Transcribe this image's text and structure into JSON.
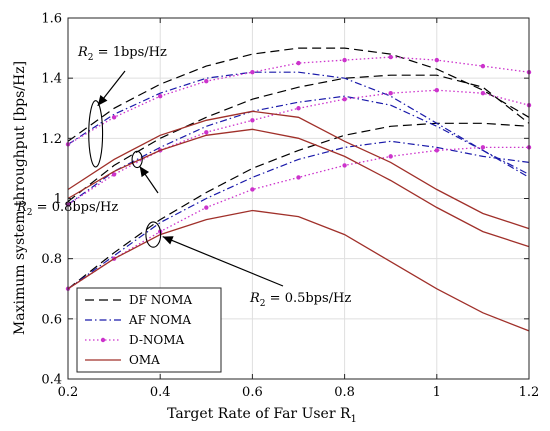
{
  "chart_data": {
    "type": "line",
    "title": "",
    "xlabel": "Target Rate of Far User R",
    "xlabel_sub": "1",
    "ylabel": "Maximum system throughput [bps/Hz]",
    "xlim": [
      0.2,
      1.2
    ],
    "ylim": [
      0.4,
      1.6
    ],
    "xticks": [
      0.2,
      0.4,
      0.6,
      0.8,
      1,
      1.2
    ],
    "xtick_labels": [
      "0.2",
      "0.4",
      "0.6",
      "0.8",
      "1",
      "1.2"
    ],
    "yticks": [
      0.4,
      0.6,
      0.8,
      1,
      1.2,
      1.4,
      1.6
    ],
    "ytick_labels": [
      "0.4",
      "0.6",
      "0.8",
      "1",
      "1.2",
      "1.4",
      "1.6"
    ],
    "grid": true,
    "legend_position": "bottom-left",
    "x": [
      0.2,
      0.3,
      0.4,
      0.5,
      0.6,
      0.7,
      0.8,
      0.9,
      1.0,
      1.1,
      1.2
    ],
    "series": [
      {
        "name": "DF NOMA",
        "group": "R2 = 1bps/Hz",
        "style": "dashed",
        "color": "#000000",
        "values": [
          1.19,
          1.3,
          1.38,
          1.44,
          1.48,
          1.5,
          1.5,
          1.48,
          1.43,
          1.36,
          1.27
        ]
      },
      {
        "name": "DF NOMA",
        "group": "R2 = 0.8bps/Hz",
        "style": "dashed",
        "color": "#000000",
        "values": [
          0.99,
          1.11,
          1.2,
          1.27,
          1.33,
          1.37,
          1.4,
          1.41,
          1.41,
          1.37,
          1.25
        ]
      },
      {
        "name": "DF NOMA",
        "group": "R2 = 0.5bps/Hz",
        "style": "dashed",
        "color": "#000000",
        "values": [
          0.7,
          0.82,
          0.93,
          1.02,
          1.1,
          1.16,
          1.21,
          1.24,
          1.25,
          1.25,
          1.24
        ]
      },
      {
        "name": "AF NOMA",
        "group": "R2 = 1bps/Hz",
        "style": "dashdot",
        "color": "#1a1aaa",
        "values": [
          1.18,
          1.28,
          1.35,
          1.4,
          1.42,
          1.42,
          1.4,
          1.34,
          1.25,
          1.16,
          1.07
        ]
      },
      {
        "name": "AF NOMA",
        "group": "R2 = 0.8bps/Hz",
        "style": "dashdot",
        "color": "#1a1aaa",
        "values": [
          0.98,
          1.09,
          1.17,
          1.24,
          1.29,
          1.32,
          1.34,
          1.31,
          1.24,
          1.16,
          1.08
        ]
      },
      {
        "name": "AF NOMA",
        "group": "R2 = 0.5bps/Hz",
        "style": "dashdot",
        "color": "#1a1aaa",
        "values": [
          0.7,
          0.81,
          0.92,
          1.0,
          1.07,
          1.13,
          1.17,
          1.19,
          1.17,
          1.14,
          1.12
        ]
      },
      {
        "name": "D-NOMA",
        "group": "R2 = 1bps/Hz",
        "style": "dotted-marker",
        "color": "#cc33cc",
        "values": [
          1.18,
          1.27,
          1.34,
          1.39,
          1.42,
          1.45,
          1.46,
          1.47,
          1.46,
          1.44,
          1.42
        ]
      },
      {
        "name": "D-NOMA",
        "group": "R2 = 0.8bps/Hz",
        "style": "dotted-marker",
        "color": "#cc33cc",
        "values": [
          0.98,
          1.08,
          1.16,
          1.22,
          1.26,
          1.3,
          1.33,
          1.35,
          1.36,
          1.35,
          1.31
        ]
      },
      {
        "name": "D-NOMA",
        "group": "R2 = 0.5bps/Hz",
        "style": "dotted-marker",
        "color": "#cc33cc",
        "values": [
          0.7,
          0.8,
          0.89,
          0.97,
          1.03,
          1.07,
          1.11,
          1.14,
          1.16,
          1.17,
          1.17
        ]
      },
      {
        "name": "OMA",
        "group": "R2 = 1bps/Hz",
        "style": "solid",
        "color": "#a0302a",
        "values": [
          1.03,
          1.13,
          1.21,
          1.26,
          1.29,
          1.27,
          1.19,
          1.12,
          1.03,
          0.95,
          0.9
        ]
      },
      {
        "name": "OMA",
        "group": "R2 = 0.8bps/Hz",
        "style": "solid",
        "color": "#a0302a",
        "values": [
          1.0,
          1.09,
          1.16,
          1.21,
          1.23,
          1.2,
          1.14,
          1.06,
          0.97,
          0.89,
          0.84
        ]
      },
      {
        "name": "OMA",
        "group": "R2 = 0.5bps/Hz",
        "style": "solid",
        "color": "#a0302a",
        "values": [
          0.7,
          0.8,
          0.88,
          0.93,
          0.96,
          0.94,
          0.88,
          0.79,
          0.7,
          0.62,
          0.56
        ]
      }
    ],
    "legend": [
      {
        "label": "DF NOMA",
        "style": "dashed",
        "color": "#000000"
      },
      {
        "label": "AF NOMA",
        "style": "dashdot",
        "color": "#1a1aaa"
      },
      {
        "label": "D-NOMA",
        "style": "dotted-marker",
        "color": "#cc33cc"
      },
      {
        "label": "OMA",
        "style": "solid",
        "color": "#a0302a"
      }
    ],
    "annotations": [
      {
        "sym": "R",
        "sub": "2",
        "rest": " = 1bps/Hz",
        "ellipse_center": [
          0.26,
          1.215
        ],
        "ellipse_r": [
          0.015,
          0.11
        ]
      },
      {
        "sym": "R",
        "sub": "2",
        "rest": " = 0.8bps/Hz",
        "ellipse_center": [
          0.35,
          1.13
        ],
        "ellipse_r": [
          0.011,
          0.027
        ]
      },
      {
        "sym": "R",
        "sub": "2",
        "rest": " = 0.5bps/Hz",
        "ellipse_center": [
          0.385,
          0.88
        ],
        "ellipse_r": [
          0.016,
          0.042
        ]
      }
    ]
  }
}
